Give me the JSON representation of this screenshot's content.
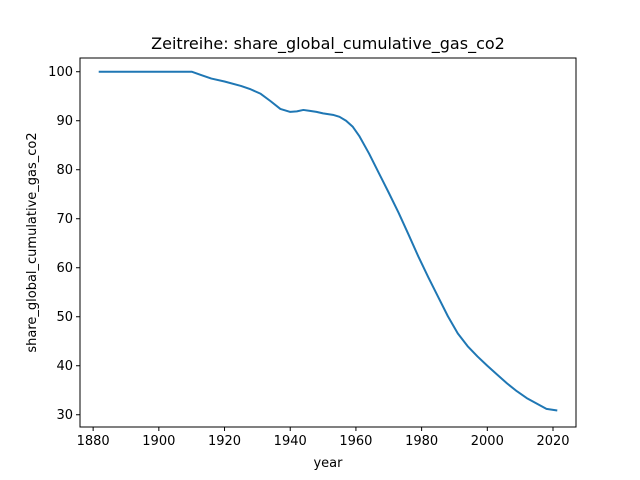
{
  "chart_data": {
    "type": "line",
    "title": "Zeitreihe: share_global_cumulative_gas_co2",
    "xlabel": "year",
    "ylabel": "share_global_cumulative_gas_co2",
    "xlim": [
      1876,
      2027
    ],
    "ylim": [
      27.5,
      102.8
    ],
    "xticks": [
      1880,
      1900,
      1920,
      1940,
      1960,
      1980,
      2000,
      2020
    ],
    "yticks": [
      30,
      40,
      50,
      60,
      70,
      80,
      90,
      100
    ],
    "grid": false,
    "colors": {
      "series": "#1f77b4",
      "axes": "#000000",
      "background": "#ffffff"
    },
    "series": [
      {
        "x": [
          1882,
          1890,
          1900,
          1905,
          1910,
          1913,
          1916,
          1920,
          1925,
          1928,
          1931,
          1934,
          1937,
          1940,
          1942,
          1944,
          1946,
          1948,
          1950,
          1953,
          1955,
          1957,
          1959,
          1961,
          1964,
          1967,
          1970,
          1973,
          1976,
          1979,
          1982,
          1985,
          1988,
          1991,
          1994,
          1997,
          2000,
          2003,
          2006,
          2009,
          2012,
          2015,
          2018,
          2021
        ],
        "values": [
          100,
          100,
          100,
          100,
          100,
          99.3,
          98.6,
          98.0,
          97.1,
          96.4,
          95.5,
          94.0,
          92.4,
          91.8,
          91.9,
          92.2,
          92.0,
          91.8,
          91.5,
          91.2,
          90.8,
          90.0,
          88.8,
          86.9,
          83.3,
          79.3,
          75.3,
          71.2,
          66.8,
          62.3,
          58.1,
          54.1,
          50.1,
          46.6,
          44.0,
          41.9,
          40.0,
          38.2,
          36.4,
          34.8,
          33.4,
          32.3,
          31.2,
          30.9
        ]
      }
    ]
  }
}
